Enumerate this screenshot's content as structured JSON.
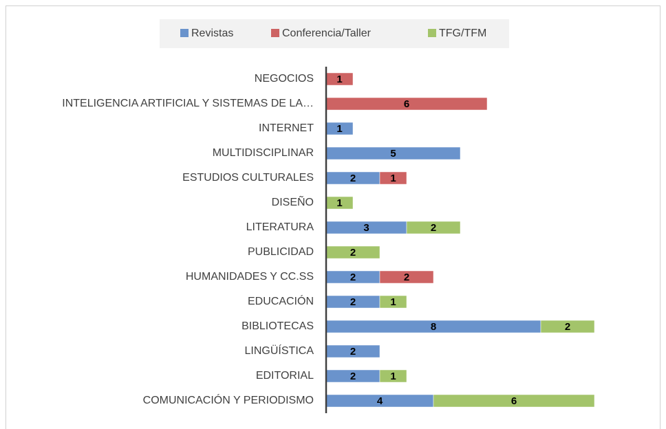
{
  "chart_data": {
    "type": "stacked-bar-horizontal",
    "categories": [
      "NEGOCIOS",
      "INTELIGENCIA ARTIFICIAL Y SISTEMAS DE LA…",
      "INTERNET",
      "MULTIDISCIPLINAR",
      "ESTUDIOS CULTURALES",
      "DISEÑO",
      "LITERATURA",
      "PUBLICIDAD",
      "HUMANIDADES Y CC.SS",
      "EDUCACIÓN",
      "BIBLIOTECAS",
      "LINGÜÍSTICA",
      "EDITORIAL",
      "COMUNICACIÓN Y PERIODISMO"
    ],
    "series": [
      {
        "name": "Revistas",
        "color": "#6a93cc",
        "values": [
          null,
          null,
          1,
          5,
          2,
          null,
          3,
          null,
          2,
          2,
          8,
          2,
          2,
          4
        ]
      },
      {
        "name": "Conferencia/Taller",
        "color": "#cd6363",
        "values": [
          1,
          6,
          null,
          null,
          1,
          null,
          null,
          null,
          2,
          null,
          null,
          null,
          null,
          null
        ]
      },
      {
        "name": "TFG/TFM",
        "color": "#a3c46a",
        "values": [
          null,
          null,
          null,
          null,
          null,
          1,
          2,
          2,
          null,
          1,
          2,
          null,
          1,
          6
        ]
      }
    ],
    "xlim": [
      0,
      10
    ],
    "legend": "top"
  }
}
